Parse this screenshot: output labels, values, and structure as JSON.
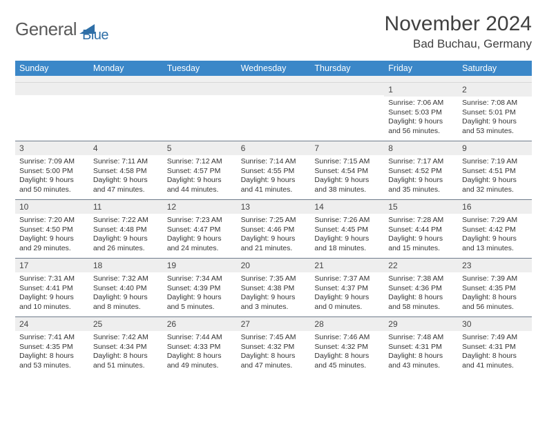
{
  "logo": {
    "text1": "General",
    "text2": "Blue"
  },
  "title": "November 2024",
  "location": "Bad Buchau, Germany",
  "colors": {
    "header_bg": "#3b87c8",
    "header_text": "#ffffff",
    "daynum_bg": "#eeeeee",
    "border": "#6d7a8a",
    "logo_gray": "#5a5a5a",
    "logo_blue": "#2f6fa7"
  },
  "day_names": [
    "Sunday",
    "Monday",
    "Tuesday",
    "Wednesday",
    "Thursday",
    "Friday",
    "Saturday"
  ],
  "weeks": [
    [
      {
        "n": "",
        "sr": "",
        "ss": "",
        "dl": ""
      },
      {
        "n": "",
        "sr": "",
        "ss": "",
        "dl": ""
      },
      {
        "n": "",
        "sr": "",
        "ss": "",
        "dl": ""
      },
      {
        "n": "",
        "sr": "",
        "ss": "",
        "dl": ""
      },
      {
        "n": "",
        "sr": "",
        "ss": "",
        "dl": ""
      },
      {
        "n": "1",
        "sr": "Sunrise: 7:06 AM",
        "ss": "Sunset: 5:03 PM",
        "dl": "Daylight: 9 hours and 56 minutes."
      },
      {
        "n": "2",
        "sr": "Sunrise: 7:08 AM",
        "ss": "Sunset: 5:01 PM",
        "dl": "Daylight: 9 hours and 53 minutes."
      }
    ],
    [
      {
        "n": "3",
        "sr": "Sunrise: 7:09 AM",
        "ss": "Sunset: 5:00 PM",
        "dl": "Daylight: 9 hours and 50 minutes."
      },
      {
        "n": "4",
        "sr": "Sunrise: 7:11 AM",
        "ss": "Sunset: 4:58 PM",
        "dl": "Daylight: 9 hours and 47 minutes."
      },
      {
        "n": "5",
        "sr": "Sunrise: 7:12 AM",
        "ss": "Sunset: 4:57 PM",
        "dl": "Daylight: 9 hours and 44 minutes."
      },
      {
        "n": "6",
        "sr": "Sunrise: 7:14 AM",
        "ss": "Sunset: 4:55 PM",
        "dl": "Daylight: 9 hours and 41 minutes."
      },
      {
        "n": "7",
        "sr": "Sunrise: 7:15 AM",
        "ss": "Sunset: 4:54 PM",
        "dl": "Daylight: 9 hours and 38 minutes."
      },
      {
        "n": "8",
        "sr": "Sunrise: 7:17 AM",
        "ss": "Sunset: 4:52 PM",
        "dl": "Daylight: 9 hours and 35 minutes."
      },
      {
        "n": "9",
        "sr": "Sunrise: 7:19 AM",
        "ss": "Sunset: 4:51 PM",
        "dl": "Daylight: 9 hours and 32 minutes."
      }
    ],
    [
      {
        "n": "10",
        "sr": "Sunrise: 7:20 AM",
        "ss": "Sunset: 4:50 PM",
        "dl": "Daylight: 9 hours and 29 minutes."
      },
      {
        "n": "11",
        "sr": "Sunrise: 7:22 AM",
        "ss": "Sunset: 4:48 PM",
        "dl": "Daylight: 9 hours and 26 minutes."
      },
      {
        "n": "12",
        "sr": "Sunrise: 7:23 AM",
        "ss": "Sunset: 4:47 PM",
        "dl": "Daylight: 9 hours and 24 minutes."
      },
      {
        "n": "13",
        "sr": "Sunrise: 7:25 AM",
        "ss": "Sunset: 4:46 PM",
        "dl": "Daylight: 9 hours and 21 minutes."
      },
      {
        "n": "14",
        "sr": "Sunrise: 7:26 AM",
        "ss": "Sunset: 4:45 PM",
        "dl": "Daylight: 9 hours and 18 minutes."
      },
      {
        "n": "15",
        "sr": "Sunrise: 7:28 AM",
        "ss": "Sunset: 4:44 PM",
        "dl": "Daylight: 9 hours and 15 minutes."
      },
      {
        "n": "16",
        "sr": "Sunrise: 7:29 AM",
        "ss": "Sunset: 4:42 PM",
        "dl": "Daylight: 9 hours and 13 minutes."
      }
    ],
    [
      {
        "n": "17",
        "sr": "Sunrise: 7:31 AM",
        "ss": "Sunset: 4:41 PM",
        "dl": "Daylight: 9 hours and 10 minutes."
      },
      {
        "n": "18",
        "sr": "Sunrise: 7:32 AM",
        "ss": "Sunset: 4:40 PM",
        "dl": "Daylight: 9 hours and 8 minutes."
      },
      {
        "n": "19",
        "sr": "Sunrise: 7:34 AM",
        "ss": "Sunset: 4:39 PM",
        "dl": "Daylight: 9 hours and 5 minutes."
      },
      {
        "n": "20",
        "sr": "Sunrise: 7:35 AM",
        "ss": "Sunset: 4:38 PM",
        "dl": "Daylight: 9 hours and 3 minutes."
      },
      {
        "n": "21",
        "sr": "Sunrise: 7:37 AM",
        "ss": "Sunset: 4:37 PM",
        "dl": "Daylight: 9 hours and 0 minutes."
      },
      {
        "n": "22",
        "sr": "Sunrise: 7:38 AM",
        "ss": "Sunset: 4:36 PM",
        "dl": "Daylight: 8 hours and 58 minutes."
      },
      {
        "n": "23",
        "sr": "Sunrise: 7:39 AM",
        "ss": "Sunset: 4:35 PM",
        "dl": "Daylight: 8 hours and 56 minutes."
      }
    ],
    [
      {
        "n": "24",
        "sr": "Sunrise: 7:41 AM",
        "ss": "Sunset: 4:35 PM",
        "dl": "Daylight: 8 hours and 53 minutes."
      },
      {
        "n": "25",
        "sr": "Sunrise: 7:42 AM",
        "ss": "Sunset: 4:34 PM",
        "dl": "Daylight: 8 hours and 51 minutes."
      },
      {
        "n": "26",
        "sr": "Sunrise: 7:44 AM",
        "ss": "Sunset: 4:33 PM",
        "dl": "Daylight: 8 hours and 49 minutes."
      },
      {
        "n": "27",
        "sr": "Sunrise: 7:45 AM",
        "ss": "Sunset: 4:32 PM",
        "dl": "Daylight: 8 hours and 47 minutes."
      },
      {
        "n": "28",
        "sr": "Sunrise: 7:46 AM",
        "ss": "Sunset: 4:32 PM",
        "dl": "Daylight: 8 hours and 45 minutes."
      },
      {
        "n": "29",
        "sr": "Sunrise: 7:48 AM",
        "ss": "Sunset: 4:31 PM",
        "dl": "Daylight: 8 hours and 43 minutes."
      },
      {
        "n": "30",
        "sr": "Sunrise: 7:49 AM",
        "ss": "Sunset: 4:31 PM",
        "dl": "Daylight: 8 hours and 41 minutes."
      }
    ]
  ]
}
